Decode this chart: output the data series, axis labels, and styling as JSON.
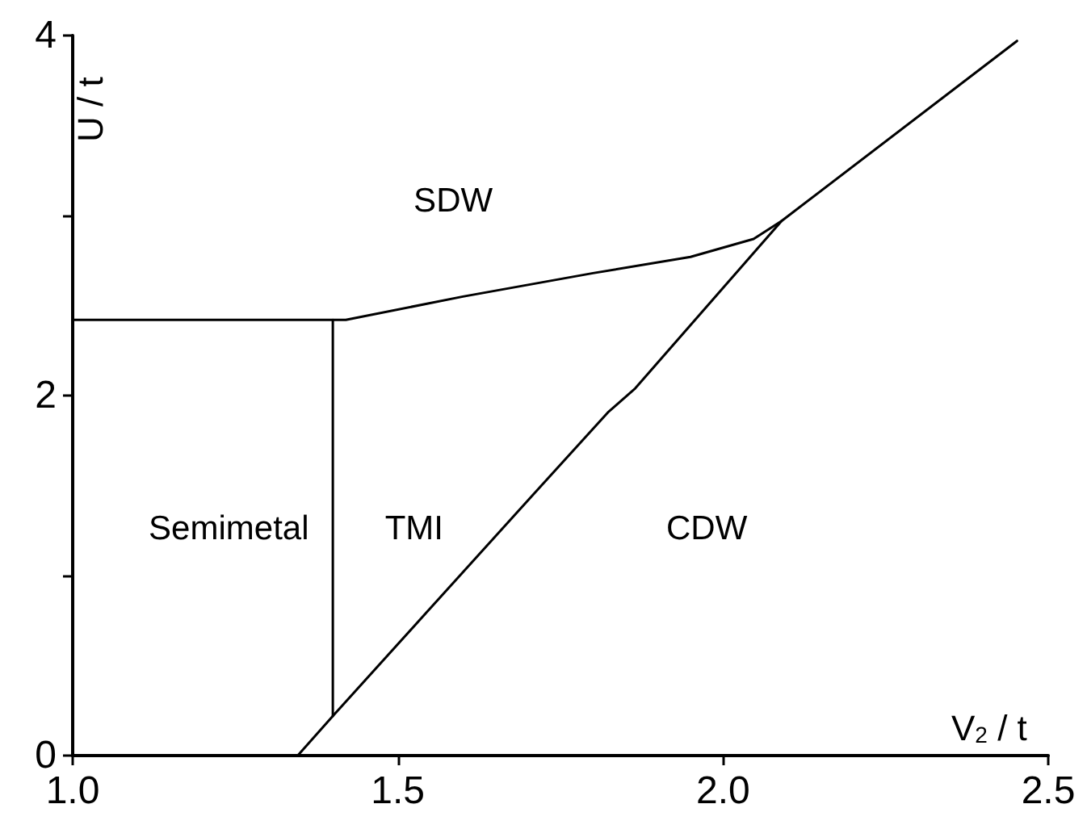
{
  "chart_data": {
    "type": "line",
    "xlabel": "V$_{2}$ / t",
    "ylabel": "U / t",
    "xlim": [
      1.0,
      2.5
    ],
    "ylim": [
      0,
      4
    ],
    "xticks": [
      {
        "value": 1.0,
        "label": "1.0"
      },
      {
        "value": 1.5,
        "label": "1.5"
      },
      {
        "value": 2.0,
        "label": "2.0"
      },
      {
        "value": 2.5,
        "label": "2.5"
      }
    ],
    "yticks": [
      0,
      {
        "value": 1,
        "label": null
      },
      2,
      {
        "value": 3,
        "label": null
      },
      4
    ],
    "series": [
      {
        "color": "#000000",
        "x": [
          1.0,
          1.4,
          1.42,
          1.6,
          1.8,
          1.95,
          2.047,
          2.09
        ],
        "values": [
          2.42,
          2.42,
          2.42,
          2.55,
          2.68,
          2.77,
          2.87,
          2.97
        ]
      },
      {
        "color": "#000000",
        "x": [
          1.4,
          1.4
        ],
        "values": [
          2.42,
          0.22
        ]
      },
      {
        "color": "#000000",
        "x": [
          1.346,
          1.4,
          1.708,
          1.824,
          1.865,
          2.09,
          2.452
        ],
        "values": [
          0,
          0.22,
          1.45,
          1.91,
          2.04,
          2.97,
          3.97
        ]
      }
    ],
    "annotations": [
      "SDW",
      "Semimetal",
      "TMI",
      "CDW"
    ],
    "grid": false,
    "marker": "none",
    "line_style": "solid"
  }
}
